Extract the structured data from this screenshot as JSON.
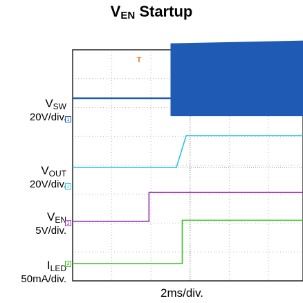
{
  "chart_data": {
    "type": "line",
    "title_main": "V",
    "title_sub": "EN",
    "title_rest": " Startup",
    "xlabel": "2ms/div.",
    "trigger_marker": "T",
    "series": [
      {
        "sym": "V",
        "sub": "SW",
        "scale": "20V/div.",
        "marker": "1",
        "color": "#1f5bb5",
        "time_div": [
          0,
          2.5,
          2.5,
          6.2
        ],
        "level_div": [
          0,
          0,
          1.9,
          1.9
        ],
        "switching_from_div": 2.5
      },
      {
        "sym": "V",
        "sub": "OUT",
        "scale": "20V/div.",
        "marker": "2",
        "color": "#22c5dc",
        "time_div": [
          0,
          2.65,
          2.9,
          6.2
        ],
        "level_div": [
          0,
          0,
          1.1,
          1.1
        ]
      },
      {
        "sym": "V",
        "sub": "EN",
        "scale": "5V/div.",
        "marker": "3",
        "color": "#9b2fb0",
        "time_div": [
          0,
          1.95,
          1.95,
          6.2
        ],
        "level_div": [
          0,
          0,
          1.0,
          1.0
        ]
      },
      {
        "sym": "I",
        "sub": "LED",
        "scale": "50mA/div.",
        "marker": "4",
        "color": "#3bbf24",
        "time_div": [
          0,
          2.8,
          2.8,
          6.2
        ],
        "level_div": [
          0,
          0,
          1.5,
          1.5
        ]
      }
    ]
  }
}
